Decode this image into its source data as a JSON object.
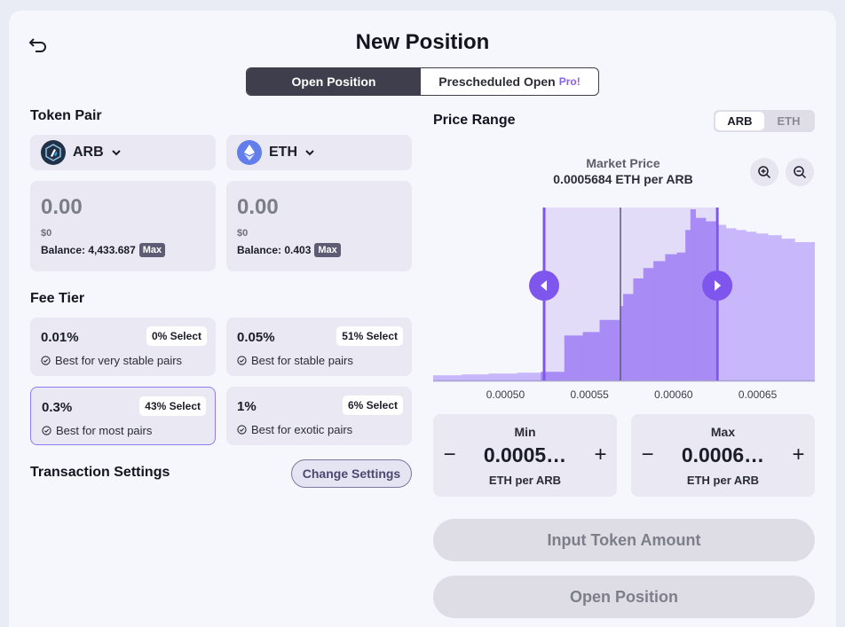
{
  "header": {
    "title": "New Position",
    "back_icon": "undo-arrow-icon"
  },
  "mode_tabs": [
    {
      "label": "Open Position",
      "active": true
    },
    {
      "label": "Prescheduled Open",
      "badge": "Pro!",
      "active": false
    }
  ],
  "token_pair": {
    "label": "Token Pair",
    "tokens": [
      {
        "symbol": "ARB",
        "icon": "arbitrum-logo-icon",
        "amount": "0.00",
        "usd": "$0",
        "balance_text": "Balance: 4,433.687",
        "max_label": "Max"
      },
      {
        "symbol": "ETH",
        "icon": "ethereum-logo-icon",
        "amount": "0.00",
        "usd": "$0",
        "balance_text": "Balance: 0.403",
        "max_label": "Max"
      }
    ]
  },
  "fee_tier": {
    "label": "Fee Tier",
    "options": [
      {
        "pct": "0.01%",
        "select": "0% Select",
        "desc": "Best for very stable pairs",
        "selected": false
      },
      {
        "pct": "0.05%",
        "select": "51% Select",
        "desc": "Best for stable pairs",
        "selected": false
      },
      {
        "pct": "0.3%",
        "select": "43% Select",
        "desc": "Best for most pairs",
        "selected": true
      },
      {
        "pct": "1%",
        "select": "6% Select",
        "desc": "Best for exotic pairs",
        "selected": false
      }
    ]
  },
  "transaction_settings": {
    "label": "Transaction Settings",
    "button": "Change Settings"
  },
  "price_range": {
    "label": "Price Range",
    "unit_toggle": [
      {
        "label": "ARB",
        "active": true
      },
      {
        "label": "ETH",
        "active": false
      }
    ],
    "market_price_label": "Market Price",
    "market_price_value": "0.0005684 ETH per ARB",
    "zoom_in_icon": "zoom-in-icon",
    "zoom_out_icon": "zoom-out-icon",
    "min": {
      "label": "Min",
      "value": "0.0005…",
      "unit": "ETH per ARB",
      "minus": "−",
      "plus": "+"
    },
    "max": {
      "label": "Max",
      "value": "0.0006…",
      "unit": "ETH per ARB",
      "minus": "−",
      "plus": "+"
    }
  },
  "chart_data": {
    "type": "area",
    "x_ticks": [
      "0.00050",
      "0.00055",
      "0.00060",
      "0.00065"
    ],
    "x_tick_values": [
      0.0005,
      0.00055,
      0.0006,
      0.00065
    ],
    "xlim": [
      0.000457,
      0.000684
    ],
    "ylim": [
      0,
      100
    ],
    "liquidity": [
      [
        0.000457,
        3
      ],
      [
        0.000474,
        3.5
      ],
      [
        0.00049,
        4
      ],
      [
        0.000507,
        4.5
      ],
      [
        0.000521,
        5
      ],
      [
        0.000535,
        26
      ],
      [
        0.000546,
        28
      ],
      [
        0.000556,
        35
      ],
      [
        0.000568,
        43
      ],
      [
        0.00057,
        50
      ],
      [
        0.000576,
        59
      ],
      [
        0.000582,
        65
      ],
      [
        0.000588,
        69
      ],
      [
        0.000595,
        73
      ],
      [
        0.000602,
        74
      ],
      [
        0.000607,
        87
      ],
      [
        0.00061,
        99
      ],
      [
        0.000613,
        94
      ],
      [
        0.000619,
        92
      ],
      [
        0.000625,
        90
      ],
      [
        0.000631,
        88
      ],
      [
        0.000637,
        87
      ],
      [
        0.000643,
        86
      ],
      [
        0.000649,
        85
      ],
      [
        0.000656,
        84
      ],
      [
        0.000664,
        82
      ],
      [
        0.000672,
        80
      ],
      [
        0.000684,
        80
      ]
    ],
    "market_price": 0.0005684,
    "range_min": 0.000523,
    "range_max": 0.000626,
    "colors": {
      "dark": "#a98bf5",
      "light": "#c8b7fb",
      "handle": "#7e56ee",
      "band": "#e3dcf9"
    }
  },
  "buttons": {
    "input_token_amount": "Input Token Amount",
    "open_position": "Open Position"
  }
}
